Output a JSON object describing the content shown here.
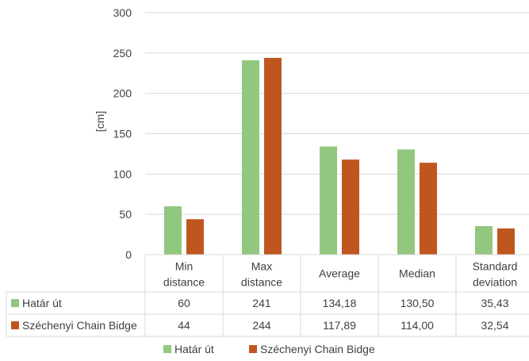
{
  "chart_data": {
    "type": "bar",
    "ylabel": "[cm]",
    "ylim": [
      0,
      300
    ],
    "yticks": [
      0,
      50,
      100,
      150,
      200,
      250,
      300
    ],
    "categories": [
      [
        "Min",
        "distance"
      ],
      [
        "Max",
        "distance"
      ],
      [
        "Average"
      ],
      [
        "Median"
      ],
      [
        "Standard",
        "deviation"
      ]
    ],
    "series": [
      {
        "name": "Határ út",
        "color": "#92c77f",
        "values": [
          60,
          241,
          134.18,
          130.5,
          35.43
        ],
        "labels": [
          "60",
          "241",
          "134,18",
          "130,50",
          "35,43"
        ]
      },
      {
        "name": "Széchenyi Chain Bidge",
        "color": "#c0561f",
        "values": [
          44,
          244,
          117.89,
          114.0,
          32.54
        ],
        "labels": [
          "44",
          "244",
          "117,89",
          "114,00",
          "32,54"
        ]
      }
    ],
    "grid": true,
    "legend": "bottom",
    "data_table": true
  }
}
